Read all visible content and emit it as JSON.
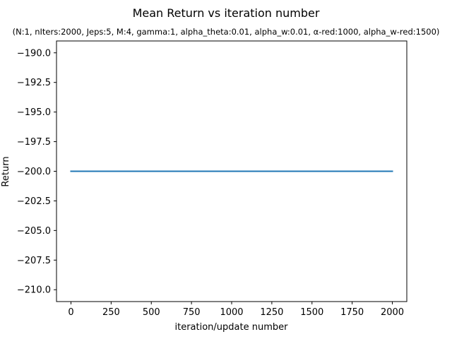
{
  "chart_data": {
    "type": "line",
    "title": "Mean Return vs iteration number",
    "subtitle": "(N:1, nIters:2000, Jeps:5, M:4, gamma:1, alpha_theta:0.01, alpha_w:0.01, α-red:1000, alpha_w-red:1500)",
    "xlabel": "iteration/update number",
    "ylabel": "Return",
    "xlim": [
      -90,
      2090
    ],
    "ylim": [
      -211,
      -189
    ],
    "xticks": [
      0,
      250,
      500,
      750,
      1000,
      1250,
      1500,
      1750,
      2000
    ],
    "xtick_labels": [
      "0",
      "250",
      "500",
      "750",
      "1000",
      "1250",
      "1500",
      "1750",
      "2000"
    ],
    "yticks": [
      -190.0,
      -192.5,
      -195.0,
      -197.5,
      -200.0,
      -202.5,
      -205.0,
      -207.5,
      -210.0
    ],
    "ytick_labels": [
      "−190.0",
      "−192.5",
      "−195.0",
      "−197.5",
      "−200.0",
      "−202.5",
      "−205.0",
      "−207.5",
      "−210.0"
    ],
    "grid": false,
    "series": [
      {
        "color": "#1f77b4",
        "x": [
          0,
          2000
        ],
        "y": [
          -200,
          -200
        ]
      }
    ]
  }
}
